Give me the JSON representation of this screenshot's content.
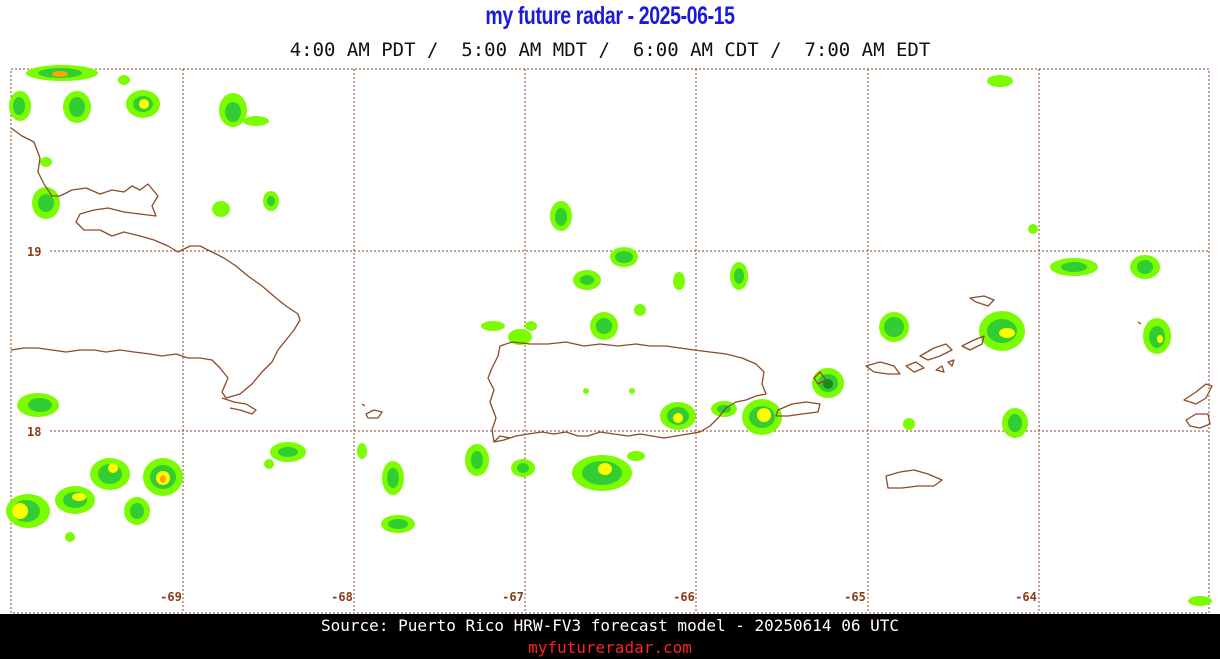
{
  "header": {
    "title": "my future radar - 2025-06-15",
    "times": "4:00 AM PDT /  5:00 AM MDT /  6:00 AM CDT /  7:00 AM EDT"
  },
  "map": {
    "lon_ticks": [
      {
        "label": "-69"
      },
      {
        "label": "-68"
      },
      {
        "label": "-67"
      },
      {
        "label": "-66"
      },
      {
        "label": "-65"
      },
      {
        "label": "-64"
      }
    ],
    "lat_ticks": [
      {
        "label": "19"
      },
      {
        "label": "18"
      }
    ],
    "colors": {
      "grid": "#8b4a2a",
      "coast": "#8b4a2a",
      "radar_light": "#7cfc00",
      "radar_mid": "#32cd32",
      "radar_dark": "#1a8c1a",
      "radar_yellow": "#ffff00",
      "radar_orange": "#ffa500",
      "radar_red": "#ff3000"
    }
  },
  "footer": {
    "source": "Source: Puerto Rico HRW-FV3 forecast model - 20250614 06 UTC",
    "site": "myfutureradar.com"
  }
}
